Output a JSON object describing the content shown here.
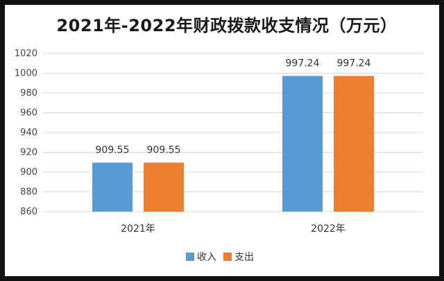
{
  "chart_data": {
    "type": "bar",
    "title": "2021年-2022年财政拨款收支情况（万元）",
    "categories": [
      "2021年",
      "2022年"
    ],
    "series": [
      {
        "name": "收入",
        "values": [
          909.55,
          997.24
        ],
        "color": "#5B9BD5"
      },
      {
        "name": "支出",
        "values": [
          909.55,
          997.24
        ],
        "color": "#ED7D31"
      }
    ],
    "data_labels": [
      [
        "909.55",
        "997.24"
      ],
      [
        "909.55",
        "997.24"
      ]
    ],
    "ylim": [
      860,
      1020
    ],
    "yticks": [
      860,
      880,
      900,
      920,
      940,
      960,
      980,
      1000,
      1020
    ],
    "xlabel": "",
    "ylabel": "",
    "grid": true,
    "legend": "bottom"
  }
}
